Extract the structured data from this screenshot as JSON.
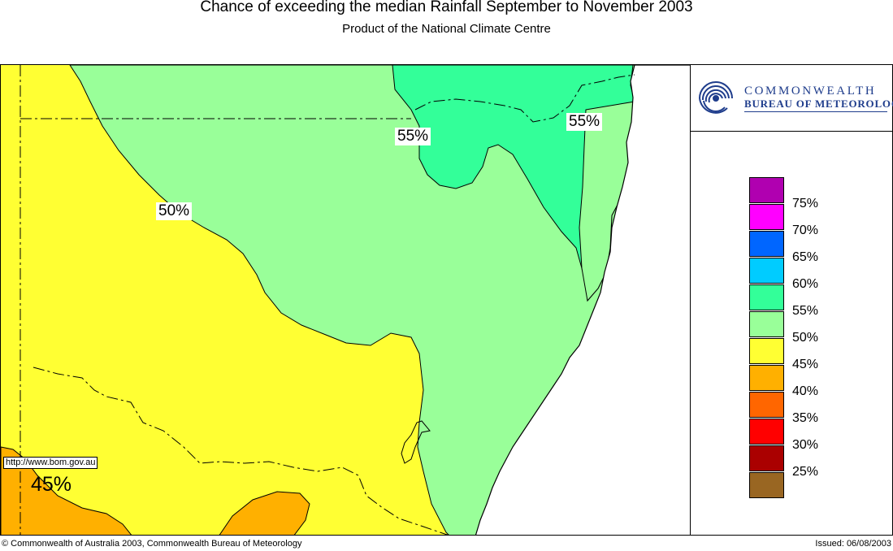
{
  "title": "Chance of exceeding the median Rainfall September to November 2003",
  "subtitle": "Product of the National Climate Centre",
  "logo": {
    "line1": "COMMONWEALTH",
    "line2": "BUREAU OF METEOROLOGY",
    "icon": "bom-swirl-logo-icon"
  },
  "legend": {
    "items": [
      {
        "label": "75%",
        "color": "#b000b0"
      },
      {
        "label": "70%",
        "color": "#ff00ff"
      },
      {
        "label": "65%",
        "color": "#0066ff"
      },
      {
        "label": "60%",
        "color": "#00ccff"
      },
      {
        "label": "55%",
        "color": "#33ff99"
      },
      {
        "label": "50%",
        "color": "#99ff99"
      },
      {
        "label": "45%",
        "color": "#ffff33"
      },
      {
        "label": "40%",
        "color": "#ffb000"
      },
      {
        "label": "35%",
        "color": "#ff6600"
      },
      {
        "label": "30%",
        "color": "#ff0000"
      },
      {
        "label": "25%",
        "color": "#aa0000"
      },
      {
        "label": "",
        "color": "#996622"
      }
    ]
  },
  "map": {
    "labels": [
      {
        "text": "55%"
      },
      {
        "text": "55%"
      },
      {
        "text": "50%"
      },
      {
        "text": "45%"
      }
    ],
    "colors": {
      "band_45": "#ffff33",
      "band_40": "#ffb000",
      "band_50": "#99ff99",
      "band_55": "#33ff99",
      "ocean": "#ffffff"
    }
  },
  "url": "http://www.bom.gov.au",
  "footer": {
    "copyright": "© Commonwealth of Australia 2003, Commonwealth Bureau of Meteorology",
    "issued": "Issued: 06/08/2003"
  }
}
